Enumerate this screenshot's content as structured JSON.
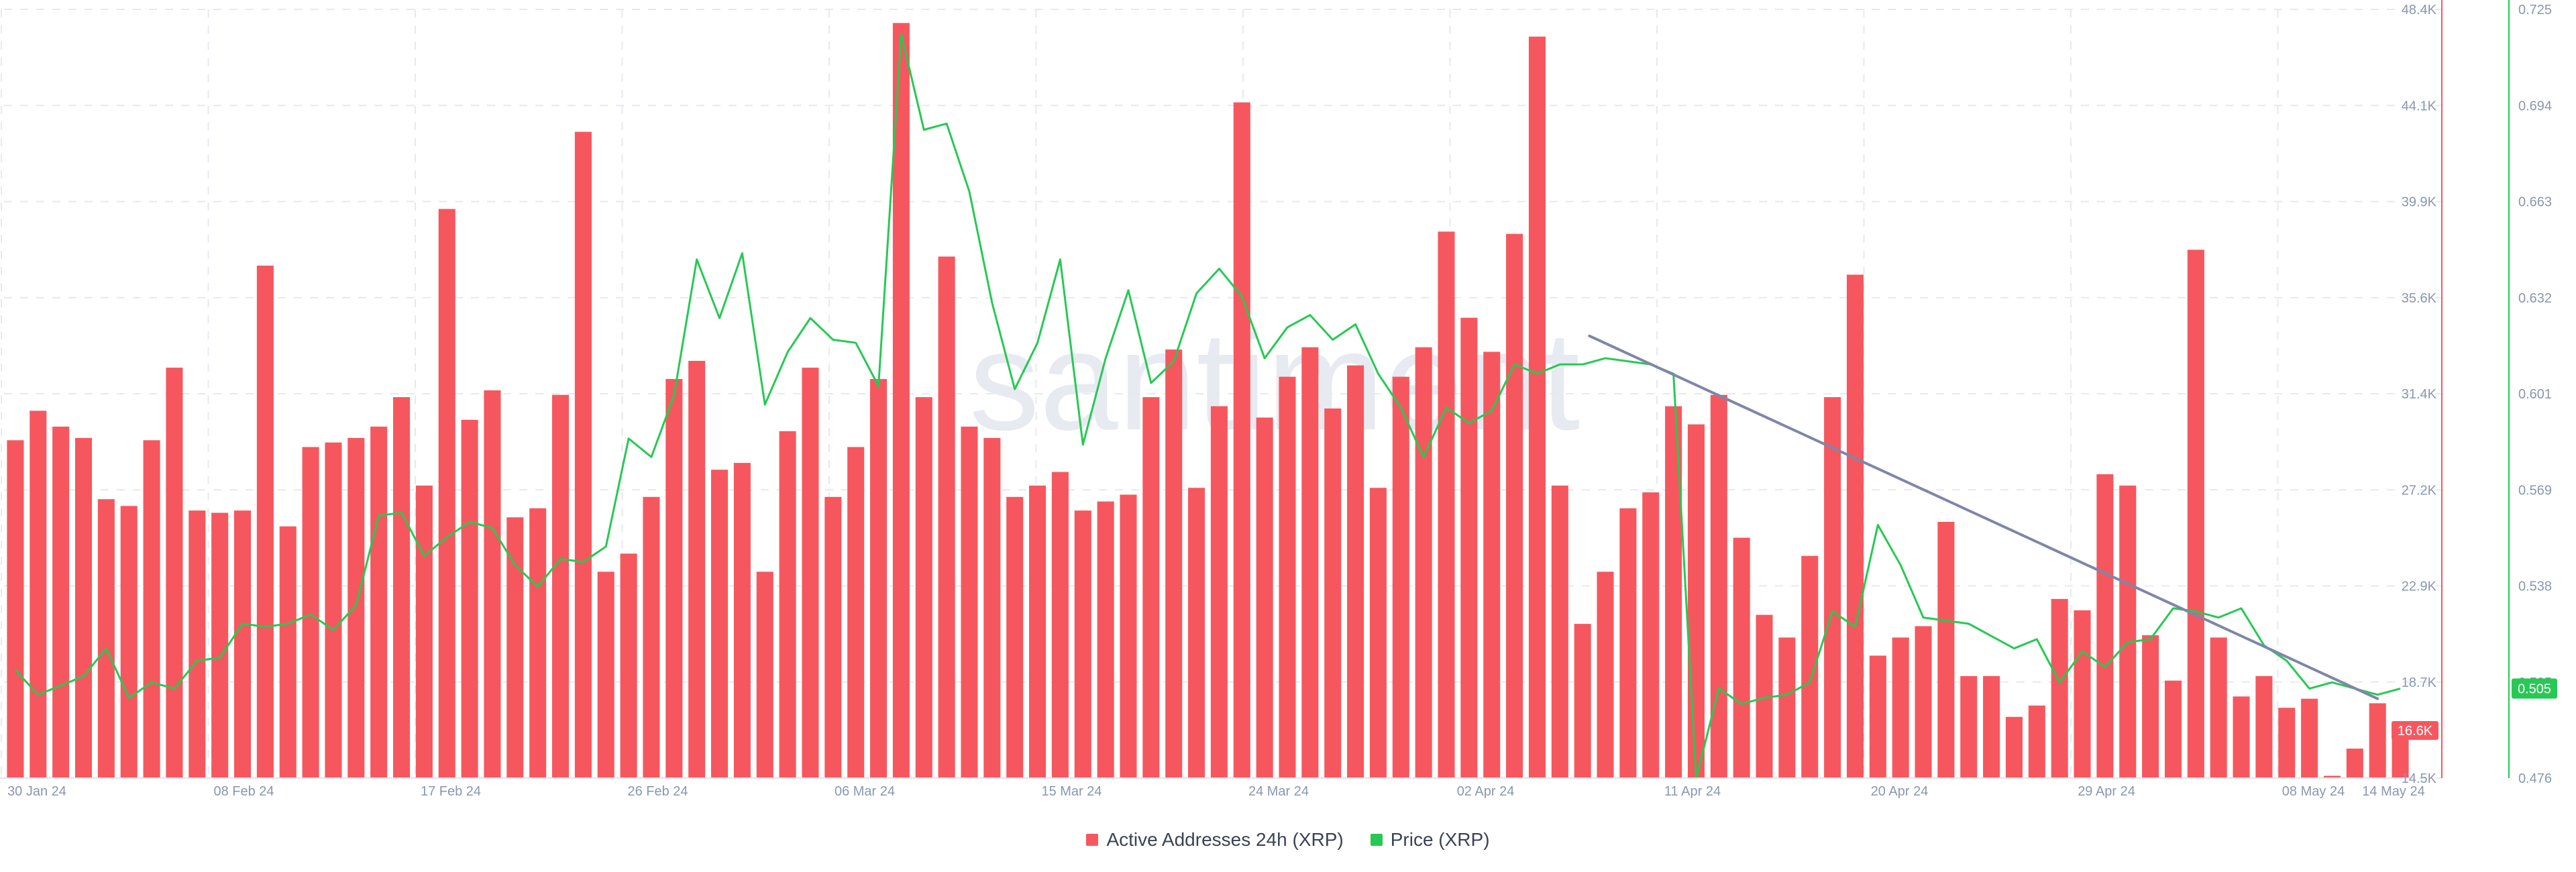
{
  "chart_data": {
    "type": "bar",
    "watermark": "santiment",
    "legend_placement": "bottom-center",
    "grid": true,
    "x_tick_labels": [
      "30 Jan 24",
      "08 Feb 24",
      "17 Feb 24",
      "26 Feb 24",
      "06 Mar 24",
      "15 Mar 24",
      "24 Mar 24",
      "02 Apr 24",
      "11 Apr 24",
      "20 Apr 24",
      "29 Apr 24",
      "08 May 24",
      "14 May 24"
    ],
    "series": [
      {
        "name": "Active Addresses 24h (XRP)",
        "type": "bar",
        "axis": "left",
        "color": "#f6575e",
        "ylim": [
          14500,
          48400
        ],
        "tick_labels": [
          "14.5K",
          "18.7K",
          "22.9K",
          "27.2K",
          "31.4K",
          "35.6K",
          "39.9K",
          "44.1K",
          "48.4K"
        ],
        "current_value_label": "16.6K",
        "values": [
          29400,
          30700,
          30000,
          29500,
          26800,
          26500,
          29400,
          32600,
          26300,
          26200,
          26300,
          37100,
          25600,
          29100,
          29300,
          29500,
          30000,
          31300,
          27400,
          39600,
          30300,
          31600,
          26000,
          26400,
          31400,
          43000,
          23600,
          24400,
          26900,
          32100,
          32900,
          28100,
          28400,
          23600,
          29800,
          32600,
          26900,
          29100,
          32100,
          47800,
          31300,
          37500,
          30000,
          29500,
          26900,
          27400,
          28000,
          26300,
          26700,
          27000,
          31300,
          33400,
          27300,
          30900,
          44300,
          30400,
          32200,
          33500,
          30800,
          32700,
          27300,
          32200,
          33500,
          38600,
          34800,
          33300,
          38500,
          47200,
          27400,
          21300,
          23600,
          26400,
          27100,
          30900,
          30100,
          31400,
          25100,
          21700,
          20700,
          24300,
          31300,
          36700,
          19900,
          20700,
          21200,
          25800,
          19000,
          19000,
          17200,
          17700,
          22400,
          21900,
          27900,
          27400,
          20800,
          18800,
          37800,
          20700,
          18100,
          19000,
          17600,
          18000,
          14600,
          15800,
          17800,
          16600
        ]
      },
      {
        "name": "Price (XRP)",
        "type": "line",
        "axis": "right",
        "color": "#26c953",
        "ylim": [
          0.476,
          0.725
        ],
        "tick_labels": [
          "0.476",
          "0.505",
          "0.538",
          "0.569",
          "0.601",
          "0.632",
          "0.663",
          "0.694",
          "0.725"
        ],
        "current_value_label": "0.505",
        "values": [
          0.511,
          0.503,
          0.506,
          0.509,
          0.518,
          0.502,
          0.507,
          0.505,
          0.514,
          0.515,
          0.526,
          0.525,
          0.526,
          0.529,
          0.524,
          0.532,
          0.561,
          0.562,
          0.548,
          0.554,
          0.559,
          0.557,
          0.545,
          0.538,
          0.547,
          0.546,
          0.551,
          0.586,
          0.58,
          0.6,
          0.644,
          0.625,
          0.646,
          0.597,
          0.614,
          0.625,
          0.618,
          0.617,
          0.603,
          0.717,
          0.686,
          0.688,
          0.666,
          0.63,
          0.602,
          0.617,
          0.644,
          0.584,
          0.612,
          0.634,
          0.604,
          0.611,
          0.633,
          0.641,
          0.632,
          0.612,
          0.622,
          0.626,
          0.618,
          0.623,
          0.607,
          0.596,
          0.58,
          0.596,
          0.591,
          0.595,
          0.61,
          0.607,
          0.61,
          0.61,
          0.612,
          0.611,
          0.61,
          0.607,
          0.476,
          0.505,
          0.5,
          0.502,
          0.503,
          0.507,
          0.53,
          0.525,
          0.558,
          0.545,
          0.528,
          0.527,
          0.526,
          0.522,
          0.518,
          0.521,
          0.507,
          0.517,
          0.512,
          0.52,
          0.521,
          0.531,
          0.53,
          0.528,
          0.531,
          0.519,
          0.514,
          0.505,
          0.507,
          0.505,
          0.503,
          0.505
        ]
      }
    ],
    "annotations": [
      {
        "type": "trendline",
        "color": "#7f86a8",
        "x_start": 69.8,
        "x_end": 104.5,
        "y_start_aa": 34000,
        "y_end_aa": 18000
      }
    ]
  }
}
